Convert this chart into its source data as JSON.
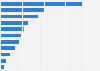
{
  "values": [
    95,
    52,
    43,
    32,
    27,
    24,
    21,
    16,
    10,
    6,
    4
  ],
  "bar_color": "#2f80d5",
  "background_color": "#f2f2f2",
  "grid_color": "#ffffff",
  "bar_height": 0.6,
  "xlim": [
    0,
    115
  ]
}
